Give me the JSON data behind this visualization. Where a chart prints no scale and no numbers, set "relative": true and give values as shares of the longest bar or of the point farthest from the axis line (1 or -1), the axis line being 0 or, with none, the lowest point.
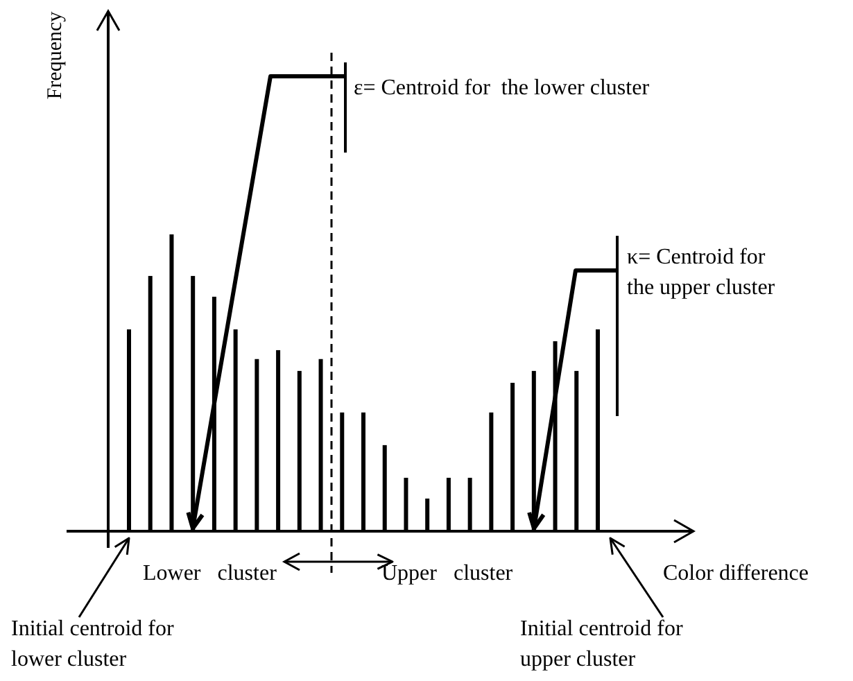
{
  "chart_data": {
    "type": "bar",
    "relative": true,
    "xlabel": "Color difference",
    "categories": [
      null,
      null,
      null,
      null,
      null,
      null,
      null,
      null,
      null,
      null,
      null,
      null,
      null,
      null,
      null,
      null,
      null,
      null,
      null,
      null,
      null,
      null,
      null
    ],
    "values": [
      0.68,
      0.86,
      1,
      0.86,
      0.79,
      0.68,
      0.58,
      0.61,
      0.54,
      0.58,
      0.4,
      0.4,
      0.29,
      0.18,
      0.11,
      0.18,
      0.18,
      0.4,
      0.5,
      0.54,
      0.64,
      0.54,
      0.68
    ],
    "color": "#000000",
    "annotations": [
      "ε= Centroid for  the lower cluster",
      "κ= Centroid for the upper cluster",
      "Lower   cluster",
      "Upper   cluster",
      "Initial centroid for lower cluster",
      "Initial centroid for upper cluster",
      "Frequency"
    ]
  }
}
